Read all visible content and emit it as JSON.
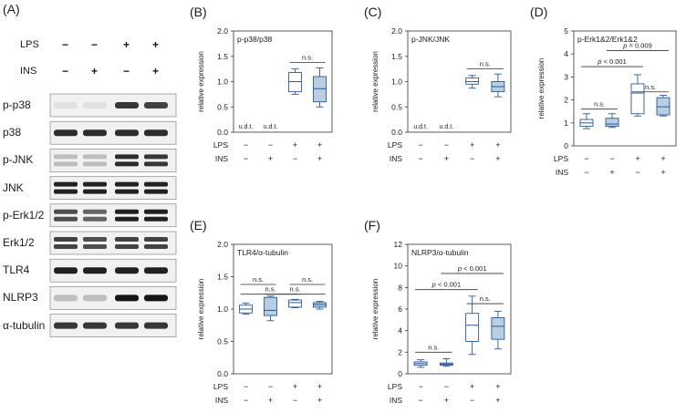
{
  "blot": {
    "panel_label": "(A)",
    "treatments": [
      {
        "name": "LPS",
        "signs": [
          "−",
          "−",
          "+",
          "+"
        ]
      },
      {
        "name": "INS",
        "signs": [
          "−",
          "+",
          "−",
          "+"
        ]
      }
    ],
    "bands": [
      {
        "name": "p-p38",
        "intensity": [
          0.05,
          0.05,
          0.8,
          0.75
        ],
        "doublet": false
      },
      {
        "name": "p38",
        "intensity": [
          0.85,
          0.85,
          0.85,
          0.85
        ],
        "doublet": false
      },
      {
        "name": "p-JNK",
        "intensity": [
          0.2,
          0.2,
          0.85,
          0.8
        ],
        "doublet": true
      },
      {
        "name": "JNK",
        "intensity": [
          0.9,
          0.9,
          0.9,
          0.9
        ],
        "doublet": true
      },
      {
        "name": "p-Erk1/2",
        "intensity": [
          0.7,
          0.6,
          0.9,
          0.9
        ],
        "doublet": true
      },
      {
        "name": "Erk1/2",
        "intensity": [
          0.75,
          0.7,
          0.75,
          0.75
        ],
        "doublet": true
      },
      {
        "name": "TLR4",
        "intensity": [
          0.9,
          0.9,
          0.9,
          0.9
        ],
        "doublet": false
      },
      {
        "name": "NLRP3",
        "intensity": [
          0.2,
          0.2,
          0.95,
          0.95
        ],
        "doublet": false
      },
      {
        "name": "α-tubulin",
        "intensity": [
          0.8,
          0.8,
          0.8,
          0.8
        ],
        "doublet": false
      }
    ]
  },
  "chart_data": [
    {
      "panel_label": "(B)",
      "type": "box",
      "title": "p-p38/p38",
      "ylabel": "relative expression",
      "ylim": [
        0,
        2
      ],
      "yticks": [
        "0.0",
        "0.5",
        "1.0",
        "1.5",
        "2.0"
      ],
      "groups": [
        {
          "lps": "−",
          "ins": "−",
          "label": "u.d.t."
        },
        {
          "lps": "−",
          "ins": "+",
          "label": "u.d.t."
        },
        {
          "lps": "+",
          "ins": "−",
          "whisker_low": 0.75,
          "q1": 0.8,
          "median": 1.0,
          "q3": 1.18,
          "whisker_high": 1.25
        },
        {
          "lps": "+",
          "ins": "+",
          "whisker_low": 0.5,
          "q1": 0.6,
          "median": 0.86,
          "q3": 1.1,
          "whisker_high": 1.27
        }
      ],
      "annotations": [
        {
          "from": 2,
          "to": 3,
          "level": 1.38,
          "text": "n.s."
        }
      ]
    },
    {
      "panel_label": "(C)",
      "type": "box",
      "title": "p-JNK/JNK",
      "ylabel": "relative expression",
      "ylim": [
        0,
        2
      ],
      "yticks": [
        "0.0",
        "0.5",
        "1.0",
        "1.5",
        "2.0"
      ],
      "groups": [
        {
          "lps": "−",
          "ins": "−",
          "label": "u.d.t."
        },
        {
          "lps": "−",
          "ins": "+",
          "label": "u.d.t."
        },
        {
          "lps": "+",
          "ins": "−",
          "whisker_low": 0.87,
          "q1": 0.95,
          "median": 1.0,
          "q3": 1.07,
          "whisker_high": 1.12
        },
        {
          "lps": "+",
          "ins": "+",
          "whisker_low": 0.7,
          "q1": 0.8,
          "median": 0.9,
          "q3": 1.0,
          "whisker_high": 1.15
        },
        {
          "skip": true
        }
      ],
      "annotations": [
        {
          "from": 2,
          "to": 3,
          "level": 1.25,
          "text": "n.s."
        }
      ]
    },
    {
      "panel_label": "(D)",
      "type": "box",
      "title": "p-Erk1&2/Erk1&2",
      "ylabel": "relative expression",
      "ylim": [
        0,
        5
      ],
      "yticks": [
        "0",
        "1",
        "2",
        "3",
        "4",
        "5"
      ],
      "groups": [
        {
          "lps": "−",
          "ins": "−",
          "whisker_low": 0.75,
          "q1": 0.85,
          "median": 1.0,
          "q3": 1.15,
          "whisker_high": 1.4
        },
        {
          "lps": "−",
          "ins": "+",
          "whisker_low": 0.8,
          "q1": 0.85,
          "median": 0.95,
          "q3": 1.2,
          "whisker_high": 1.4
        },
        {
          "lps": "+",
          "ins": "−",
          "whisker_low": 1.3,
          "q1": 1.4,
          "median": 2.3,
          "q3": 2.7,
          "whisker_high": 3.1
        },
        {
          "lps": "+",
          "ins": "+",
          "whisker_low": 1.3,
          "q1": 1.35,
          "median": 1.7,
          "q3": 2.1,
          "whisker_high": 2.2
        }
      ],
      "annotations": [
        {
          "from": 0,
          "to": 1,
          "level": 1.6,
          "text": "n.s."
        },
        {
          "from": 2,
          "to": 3,
          "level": 2.35,
          "text": "n.s."
        },
        {
          "from": 0,
          "to": 2,
          "level": 3.45,
          "text": "p < 0.001"
        },
        {
          "from": 1,
          "to": 3,
          "level": 4.15,
          "text": "p = 0.009"
        }
      ]
    },
    {
      "panel_label": "(E)",
      "type": "box",
      "title": "TLR4/α-tubulin",
      "ylabel": "relative expression",
      "ylim": [
        0,
        2
      ],
      "yticks": [
        "0.0",
        "0.5",
        "1.0",
        "1.5",
        "2.0"
      ],
      "groups": [
        {
          "lps": "−",
          "ins": "−",
          "whisker_low": 0.92,
          "q1": 0.94,
          "median": 1.0,
          "q3": 1.06,
          "whisker_high": 1.09
        },
        {
          "lps": "−",
          "ins": "+",
          "whisker_low": 0.82,
          "q1": 0.9,
          "median": 0.98,
          "q3": 1.18,
          "whisker_high": 1.2
        },
        {
          "lps": "+",
          "ins": "−",
          "whisker_low": 1.02,
          "q1": 1.03,
          "median": 1.1,
          "q3": 1.14,
          "whisker_high": 1.15
        },
        {
          "lps": "+",
          "ins": "+",
          "whisker_low": 1.0,
          "q1": 1.03,
          "median": 1.07,
          "q3": 1.1,
          "whisker_high": 1.12
        }
      ],
      "annotations": [
        {
          "from": 0,
          "to": 1,
          "level": 1.38,
          "text": "n.s."
        },
        {
          "from": 2,
          "to": 3,
          "level": 1.38,
          "text": "n.s."
        },
        {
          "from": 0,
          "to": 2,
          "level": 1.23,
          "text": "n.s."
        },
        {
          "from": 1,
          "to": 3,
          "level": 1.23,
          "text": "n.s."
        }
      ]
    },
    {
      "panel_label": "(F)",
      "type": "box",
      "title": "NLRP3/α-tubulin",
      "ylabel": "relative expression",
      "ylim": [
        0,
        12
      ],
      "yticks": [
        "0",
        "2",
        "4",
        "6",
        "8",
        "10",
        "12"
      ],
      "groups": [
        {
          "lps": "−",
          "ins": "−",
          "whisker_low": 0.6,
          "q1": 0.8,
          "median": 0.95,
          "q3": 1.1,
          "whisker_high": 1.3
        },
        {
          "lps": "−",
          "ins": "+",
          "whisker_low": 0.7,
          "q1": 0.8,
          "median": 0.9,
          "q3": 1.0,
          "whisker_high": 1.4
        },
        {
          "lps": "+",
          "ins": "−",
          "whisker_low": 1.8,
          "q1": 3.0,
          "median": 4.5,
          "q3": 5.6,
          "whisker_high": 7.2
        },
        {
          "lps": "+",
          "ins": "+",
          "whisker_low": 2.3,
          "q1": 3.2,
          "median": 4.4,
          "q3": 5.2,
          "whisker_high": 5.8
        }
      ],
      "annotations": [
        {
          "from": 0,
          "to": 1,
          "level": 2.0,
          "text": "n.s."
        },
        {
          "from": 2,
          "to": 3,
          "level": 6.5,
          "text": "n.s."
        },
        {
          "from": 0,
          "to": 2,
          "level": 7.8,
          "text": "p < 0.001"
        },
        {
          "from": 1,
          "to": 3,
          "level": 9.3,
          "text": "p < 0.001"
        }
      ]
    }
  ],
  "row_labels": {
    "lps": "LPS",
    "ins": "INS"
  },
  "colors": {
    "ctrl_fill": "#ffffff",
    "ins_fill": "#b9cde3",
    "stroke": "#2a5a93"
  }
}
